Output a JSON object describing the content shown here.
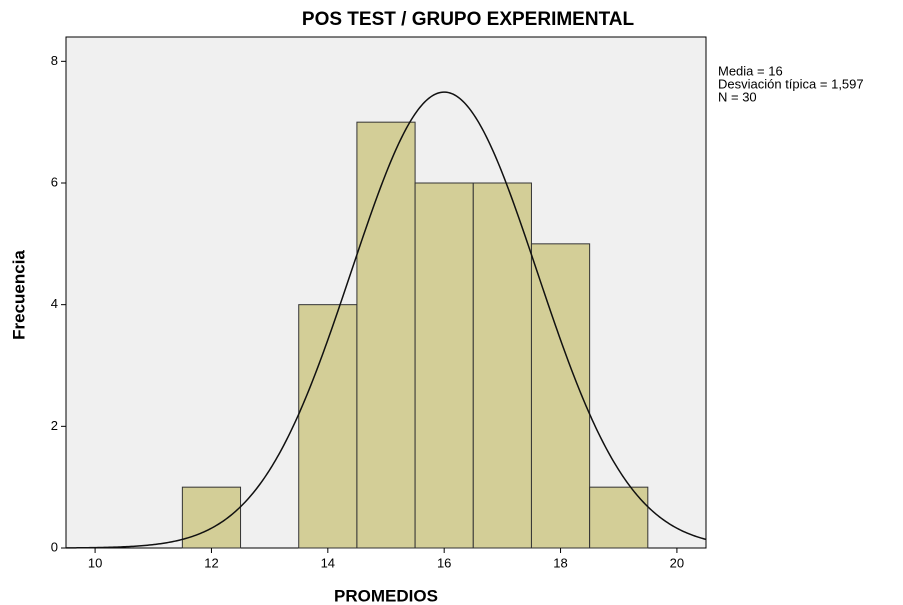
{
  "chart_data": {
    "type": "histogram",
    "title": "POS TEST / GRUPO EXPERIMENTAL",
    "x_label": "PROMEDIOS",
    "y_label": "Frecuencia",
    "bins": [
      11.5,
      12.5,
      13.5,
      14.5,
      15.5,
      16.5,
      17.5,
      18.5,
      19.5
    ],
    "values": [
      1,
      0,
      4,
      7,
      6,
      6,
      5,
      1
    ],
    "color": "#d3ce97",
    "edge_color": "#333333",
    "background": "#f0f0f0",
    "xlim": [
      9.5,
      20.5
    ],
    "ylim": [
      0,
      8.4
    ],
    "xticks": [
      10,
      12,
      14,
      16,
      18,
      20
    ],
    "yticks": [
      0,
      2,
      4,
      6,
      8
    ],
    "grid": false,
    "normal_curve": {
      "mean": {
        "value": 16,
        "label": "Media = 16"
      },
      "sd": {
        "value": 1.597,
        "label": "Desviación típica = 1,597"
      },
      "n": {
        "value": 30,
        "label": "N = 30"
      }
    }
  }
}
